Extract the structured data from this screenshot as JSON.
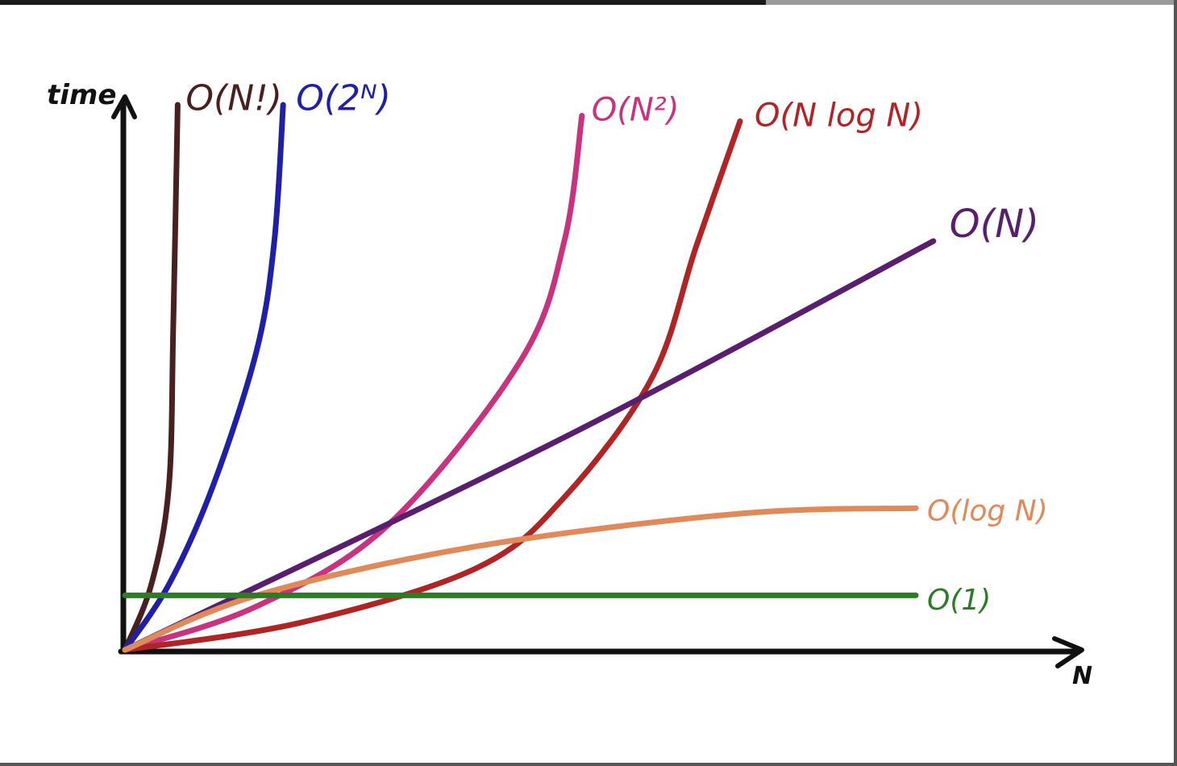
{
  "chart_data": {
    "type": "line",
    "title": "",
    "xlabel": "N",
    "ylabel": "time",
    "xlim": [
      0,
      10
    ],
    "ylim": [
      0,
      10
    ],
    "grid": false,
    "legend": "inline labels at line ends",
    "series": [
      {
        "name": "O(N!)",
        "label": "O(N!)",
        "color": "#4a1f1f",
        "points": [
          [
            0,
            0
          ],
          [
            0.3,
            1.2
          ],
          [
            0.5,
            3
          ],
          [
            0.55,
            6
          ],
          [
            0.6,
            10
          ]
        ]
      },
      {
        "name": "O(2^N)",
        "label": "O(2ᴺ)",
        "color": "#1f1fa8",
        "points": [
          [
            0,
            0
          ],
          [
            0.5,
            1.2
          ],
          [
            1.0,
            3
          ],
          [
            1.5,
            5.5
          ],
          [
            1.7,
            7.5
          ],
          [
            1.8,
            10
          ]
        ]
      },
      {
        "name": "O(N^2)",
        "label": "O(N²)",
        "color": "#c8327e",
        "points": [
          [
            0,
            0
          ],
          [
            1.5,
            0.8
          ],
          [
            3,
            2.3
          ],
          [
            4.5,
            5.3
          ],
          [
            5.0,
            7.5
          ],
          [
            5.2,
            9.8
          ]
        ]
      },
      {
        "name": "O(N log N)",
        "label": "O(N log N)",
        "color": "#b02424",
        "points": [
          [
            0,
            0
          ],
          [
            2,
            0.5
          ],
          [
            4,
            1.5
          ],
          [
            5,
            2.8
          ],
          [
            6,
            5
          ],
          [
            6.5,
            7.4
          ],
          [
            7,
            9.7
          ]
        ]
      },
      {
        "name": "O(N)",
        "label": "O(N)",
        "color": "#5a1e6e",
        "points": [
          [
            0,
            0
          ],
          [
            5,
            3.9
          ],
          [
            9.2,
            7.5
          ]
        ]
      },
      {
        "name": "O(log N)",
        "label": "O(log N)",
        "color": "#e08a5a",
        "points": [
          [
            0,
            0
          ],
          [
            1.5,
            1.0
          ],
          [
            4,
            1.9
          ],
          [
            7,
            2.5
          ],
          [
            9,
            2.6
          ]
        ]
      },
      {
        "name": "O(1)",
        "label": "O(1)",
        "color": "#2a7d24",
        "points": [
          [
            0,
            1.0
          ],
          [
            9,
            1.0
          ]
        ]
      }
    ]
  }
}
